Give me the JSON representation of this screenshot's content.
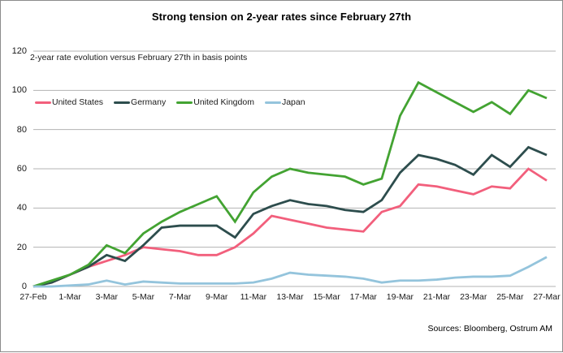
{
  "title": "Strong tension on 2-year rates since February 27th",
  "subtitle": "2-year rate evolution versus February 27th in basis points",
  "source": "Sources: Bloomberg, Ostrum AM",
  "colors": {
    "united_states": "#f25f7c",
    "germany": "#2d4d4d",
    "united_kingdom": "#43a332",
    "japan": "#94c4dc",
    "gridline": "#b3b3b3",
    "text": "#1a1a1a"
  },
  "chart_data": {
    "type": "line",
    "title": "Strong tension on 2-year rates since February 27th",
    "subtitle": "2-year rate evolution versus February 27th in basis points",
    "xlabel": "",
    "ylabel": "basis points",
    "ylim": [
      0,
      120
    ],
    "y_ticks": [
      0,
      20,
      40,
      60,
      80,
      100,
      120
    ],
    "grid": true,
    "legend_position": "top-left",
    "x": [
      "27-Feb",
      "28-Feb",
      "1-Mar",
      "2-Mar",
      "3-Mar",
      "4-Mar",
      "5-Mar",
      "6-Mar",
      "7-Mar",
      "8-Mar",
      "9-Mar",
      "10-Mar",
      "11-Mar",
      "12-Mar",
      "13-Mar",
      "14-Mar",
      "15-Mar",
      "16-Mar",
      "17-Mar",
      "18-Mar",
      "19-Mar",
      "20-Mar",
      "21-Mar",
      "22-Mar",
      "23-Mar",
      "24-Mar",
      "25-Mar",
      "26-Mar",
      "27-Mar"
    ],
    "x_tick_labels": [
      "27-Feb",
      "1-Mar",
      "3-Mar",
      "5-Mar",
      "7-Mar",
      "9-Mar",
      "11-Mar",
      "13-Mar",
      "15-Mar",
      "17-Mar",
      "19-Mar",
      "21-Mar",
      "23-Mar",
      "25-Mar",
      "27-Mar"
    ],
    "series": [
      {
        "name": "United States",
        "color": "#f25f7c",
        "values": [
          0,
          2,
          6,
          10,
          13,
          16,
          20,
          19,
          18,
          16,
          16,
          20,
          27,
          36,
          34,
          32,
          30,
          29,
          28,
          38,
          41,
          52,
          51,
          49,
          47,
          51,
          50,
          60,
          54
        ]
      },
      {
        "name": "Germany",
        "color": "#2d4d4d",
        "values": [
          0,
          2,
          6,
          10,
          16,
          13,
          21,
          30,
          31,
          31,
          31,
          25,
          37,
          41,
          44,
          42,
          41,
          39,
          38,
          44,
          58,
          67,
          65,
          62,
          57,
          67,
          61,
          71,
          67
        ]
      },
      {
        "name": "United Kingdom",
        "color": "#43a332",
        "values": [
          0,
          3,
          6,
          11,
          21,
          17,
          27,
          33,
          38,
          42,
          46,
          33,
          48,
          56,
          60,
          58,
          57,
          56,
          52,
          55,
          87,
          104,
          99,
          94,
          89,
          94,
          88,
          100,
          96
        ]
      },
      {
        "name": "Japan",
        "color": "#94c4dc",
        "values": [
          0,
          0,
          0.5,
          1,
          3,
          1,
          2.5,
          2,
          1.5,
          1.5,
          1.5,
          1.5,
          2,
          4,
          7,
          6,
          5.5,
          5,
          4,
          2,
          3,
          3,
          3.5,
          4.5,
          5,
          5,
          5.5,
          10,
          15
        ]
      }
    ]
  }
}
